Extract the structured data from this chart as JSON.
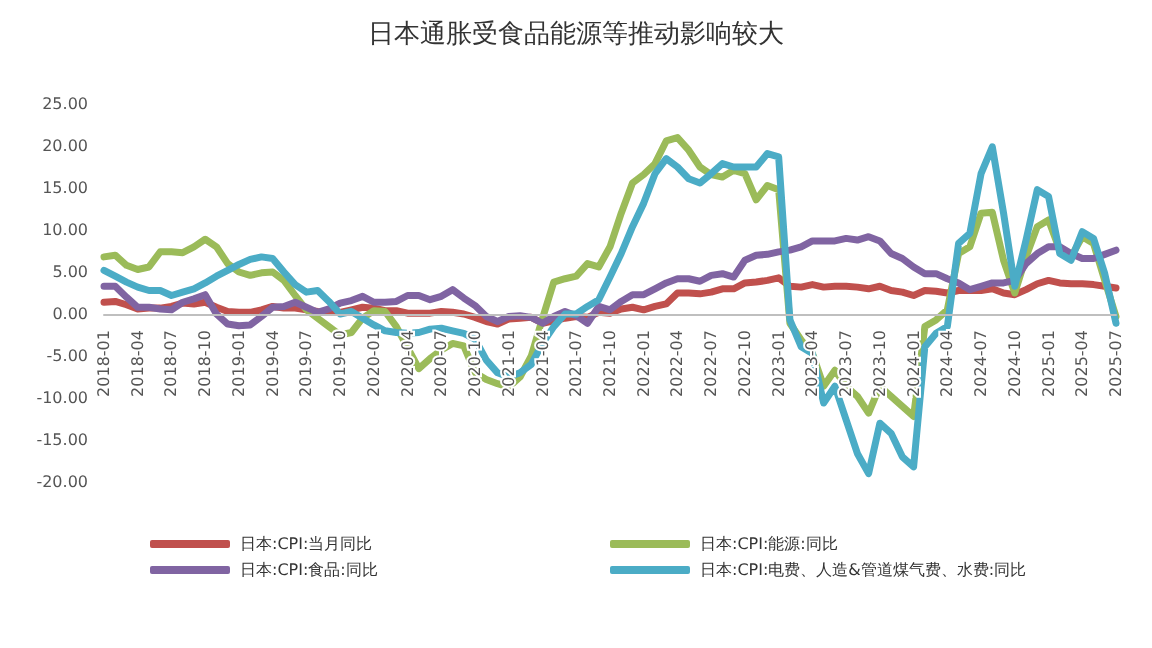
{
  "chart_data": {
    "type": "line",
    "title": "日本通胀受食品能源等推动影响较大",
    "categories": [
      "2018-01",
      null,
      null,
      "2018-04",
      null,
      null,
      "2018-07",
      null,
      null,
      "2018-10",
      null,
      null,
      "2019-01",
      null,
      null,
      "2019-04",
      null,
      null,
      "2019-07",
      null,
      null,
      "2019-10",
      null,
      null,
      "2020-01",
      null,
      null,
      "2020-04",
      null,
      null,
      "2020-07",
      null,
      null,
      "2020-10",
      null,
      null,
      "2021-01",
      null,
      null,
      "2021-04",
      null,
      null,
      "2021-07",
      null,
      null,
      "2021-10",
      null,
      null,
      "2022-01",
      null,
      null,
      "2022-04",
      null,
      null,
      "2022-07",
      null,
      null,
      "2022-10",
      null,
      null,
      "2023-01",
      null,
      null,
      "2023-04",
      null,
      null,
      "2023-07",
      null,
      null,
      "2023-10",
      null,
      null,
      "2024-01",
      null,
      null,
      "2024-04",
      null,
      null,
      "2024-07",
      null,
      null,
      "2024-10",
      null,
      null,
      "2025-01",
      null,
      null,
      "2025-04",
      null,
      null,
      "2025-07"
    ],
    "series": [
      {
        "name": "日本:CPI:当月同比",
        "color": "#c0504d",
        "values": [
          1.4,
          1.5,
          1.1,
          0.6,
          0.7,
          0.7,
          0.9,
          1.3,
          1.2,
          1.4,
          0.8,
          0.3,
          0.2,
          0.2,
          0.5,
          0.9,
          0.7,
          0.7,
          0.5,
          0.3,
          0.2,
          0.2,
          0.5,
          0.8,
          0.7,
          0.4,
          0.4,
          0.1,
          0.1,
          0.1,
          0.3,
          0.2,
          0.0,
          -0.4,
          -0.9,
          -1.2,
          -0.6,
          -0.5,
          -0.4,
          -1.1,
          -0.8,
          -0.5,
          -0.3,
          -0.4,
          0.2,
          0.1,
          0.6,
          0.8,
          0.5,
          0.9,
          1.2,
          2.5,
          2.5,
          2.4,
          2.6,
          3.0,
          3.0,
          3.7,
          3.8,
          4.0,
          4.3,
          3.3,
          3.2,
          3.5,
          3.2,
          3.3,
          3.3,
          3.2,
          3.0,
          3.3,
          2.8,
          2.6,
          2.2,
          2.8,
          2.7,
          2.5,
          2.8,
          2.8,
          2.8,
          3.0,
          2.5,
          2.3,
          2.9,
          3.6,
          4.0,
          3.7,
          3.6,
          3.6,
          3.5,
          3.3,
          3.1
        ]
      },
      {
        "name": "日本:CPI:能源:同比",
        "color": "#9bbb59",
        "values": [
          6.8,
          7.0,
          5.8,
          5.3,
          5.6,
          7.4,
          7.4,
          7.3,
          8.0,
          8.9,
          8.0,
          6.0,
          5.0,
          4.6,
          4.9,
          5.0,
          4.0,
          2.2,
          0.5,
          -0.5,
          -1.5,
          -2.5,
          -2.2,
          -0.5,
          0.4,
          0.3,
          -1.5,
          -4.0,
          -6.5,
          -5.3,
          -4.3,
          -3.5,
          -3.8,
          -7.0,
          -7.8,
          -8.3,
          -8.7,
          -7.5,
          -5.0,
          -0.5,
          3.8,
          4.2,
          4.5,
          6.0,
          5.6,
          8.0,
          12.0,
          15.6,
          16.6,
          17.9,
          20.6,
          21.0,
          19.5,
          17.5,
          16.6,
          16.3,
          17.1,
          16.7,
          13.6,
          15.3,
          14.8,
          -1.1,
          -3.1,
          -4.7,
          -8.6,
          -6.7,
          -8.6,
          -9.8,
          -11.8,
          -8.6,
          -9.8,
          -11.0,
          -12.2,
          -1.5,
          -0.7,
          0.5,
          7.2,
          8.0,
          12.0,
          12.1,
          6.4,
          2.5,
          6.8,
          10.4,
          11.2,
          7.6,
          6.8,
          9.2,
          8.4,
          4.0,
          -0.3
        ]
      },
      {
        "name": "日本:CPI:食品:同比",
        "color": "#8064a2",
        "values": [
          3.3,
          3.3,
          2.0,
          0.8,
          0.8,
          0.6,
          0.5,
          1.4,
          1.8,
          2.3,
          0.0,
          -1.2,
          -1.4,
          -1.3,
          -0.3,
          0.8,
          0.9,
          1.4,
          0.8,
          0.2,
          0.6,
          1.3,
          1.6,
          2.1,
          1.4,
          1.4,
          1.5,
          2.2,
          2.2,
          1.7,
          2.1,
          2.9,
          1.9,
          1.0,
          -0.3,
          -0.9,
          -0.3,
          -0.2,
          -0.4,
          -1.1,
          -0.3,
          0.3,
          -0.2,
          -1.1,
          0.9,
          0.5,
          1.5,
          2.3,
          2.3,
          3.0,
          3.7,
          4.2,
          4.2,
          3.9,
          4.6,
          4.8,
          4.4,
          6.4,
          7.0,
          7.1,
          7.4,
          7.6,
          8.0,
          8.7,
          8.7,
          8.7,
          9.0,
          8.8,
          9.2,
          8.7,
          7.2,
          6.6,
          5.6,
          4.8,
          4.8,
          4.2,
          3.7,
          2.9,
          3.3,
          3.7,
          3.7,
          4.0,
          6.0,
          7.2,
          8.0,
          8.0,
          7.2,
          6.6,
          6.6,
          7.1,
          7.6
        ]
      },
      {
        "name": "日本:CPI:电费、人造&管道煤气费、水费:同比",
        "color": "#4bacc6",
        "values": [
          5.2,
          4.5,
          3.8,
          3.2,
          2.8,
          2.8,
          2.2,
          2.6,
          3.0,
          3.7,
          4.5,
          5.2,
          5.9,
          6.5,
          6.8,
          6.6,
          5.0,
          3.5,
          2.6,
          2.8,
          1.5,
          0.0,
          0.3,
          -0.5,
          -1.3,
          -2.0,
          -2.2,
          -2.3,
          -2.2,
          -1.8,
          -1.7,
          -2.0,
          -2.3,
          -3.0,
          -5.5,
          -7.0,
          -7.5,
          -7.0,
          -6.0,
          -3.5,
          -1.5,
          0.0,
          0.0,
          0.9,
          1.7,
          4.4,
          7.2,
          10.4,
          13.2,
          16.7,
          18.5,
          17.5,
          16.1,
          15.6,
          16.7,
          17.9,
          17.5,
          17.5,
          17.5,
          19.1,
          18.7,
          -0.7,
          -3.9,
          -4.7,
          -10.6,
          -8.6,
          -12.6,
          -16.6,
          -19.0,
          -13.0,
          -14.2,
          -17.0,
          -18.2,
          -3.9,
          -2.3,
          -1.5,
          8.4,
          9.6,
          16.7,
          19.9,
          12.0,
          3.3,
          8.8,
          14.8,
          14.0,
          7.2,
          6.4,
          9.8,
          9.0,
          4.8,
          -1.1
        ]
      }
    ],
    "ylim": [
      -20,
      25
    ],
    "yticks": [
      {
        "value": -20,
        "label": "-20.00"
      },
      {
        "value": -15,
        "label": "-15.00"
      },
      {
        "value": -10,
        "label": "-10.00"
      },
      {
        "value": -5,
        "label": "-5.00"
      },
      {
        "value": 0,
        "label": "0.00"
      },
      {
        "value": 5,
        "label": "5.00"
      },
      {
        "value": 10,
        "label": "10.00"
      },
      {
        "value": 15,
        "label": "15.00"
      },
      {
        "value": 20,
        "label": "20.00"
      },
      {
        "value": 25,
        "label": "25.00"
      }
    ],
    "grid": false,
    "legend": "bottom",
    "marker": "none",
    "line_style": "solid"
  }
}
